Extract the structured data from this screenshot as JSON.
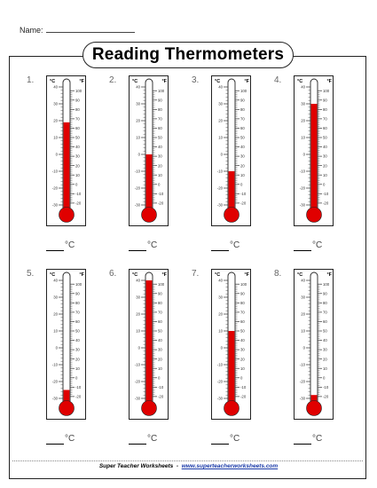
{
  "header": {
    "name_label": "Name:"
  },
  "title": "Reading Thermometers",
  "footer": {
    "brand": "Super Teacher Worksheets",
    "separator": "-",
    "url": "www.superteacherworksheets.com"
  },
  "scale": {
    "celsius_unit": "°C",
    "fahrenheit_unit": "°F",
    "celsius_ticks": [
      "40",
      "30",
      "20",
      "10",
      "0",
      "-10",
      "-20",
      "-30"
    ],
    "fahrenheit_ticks": [
      "100",
      "90",
      "80",
      "70",
      "60",
      "50",
      "40",
      "30",
      "20",
      "10",
      "0",
      "-10",
      "-20"
    ]
  },
  "answer_unit": "°C",
  "thermometers": [
    {
      "label": "1.",
      "celsius": 19
    },
    {
      "label": "2.",
      "celsius": 0
    },
    {
      "label": "3.",
      "celsius": -10
    },
    {
      "label": "4.",
      "celsius": 30
    },
    {
      "label": "5.",
      "celsius": -25
    },
    {
      "label": "6.",
      "celsius": 40
    },
    {
      "label": "7.",
      "celsius": 10
    },
    {
      "label": "8.",
      "celsius": -28
    }
  ],
  "colors": {
    "mercury": "#e00000",
    "ink": "#222222"
  }
}
